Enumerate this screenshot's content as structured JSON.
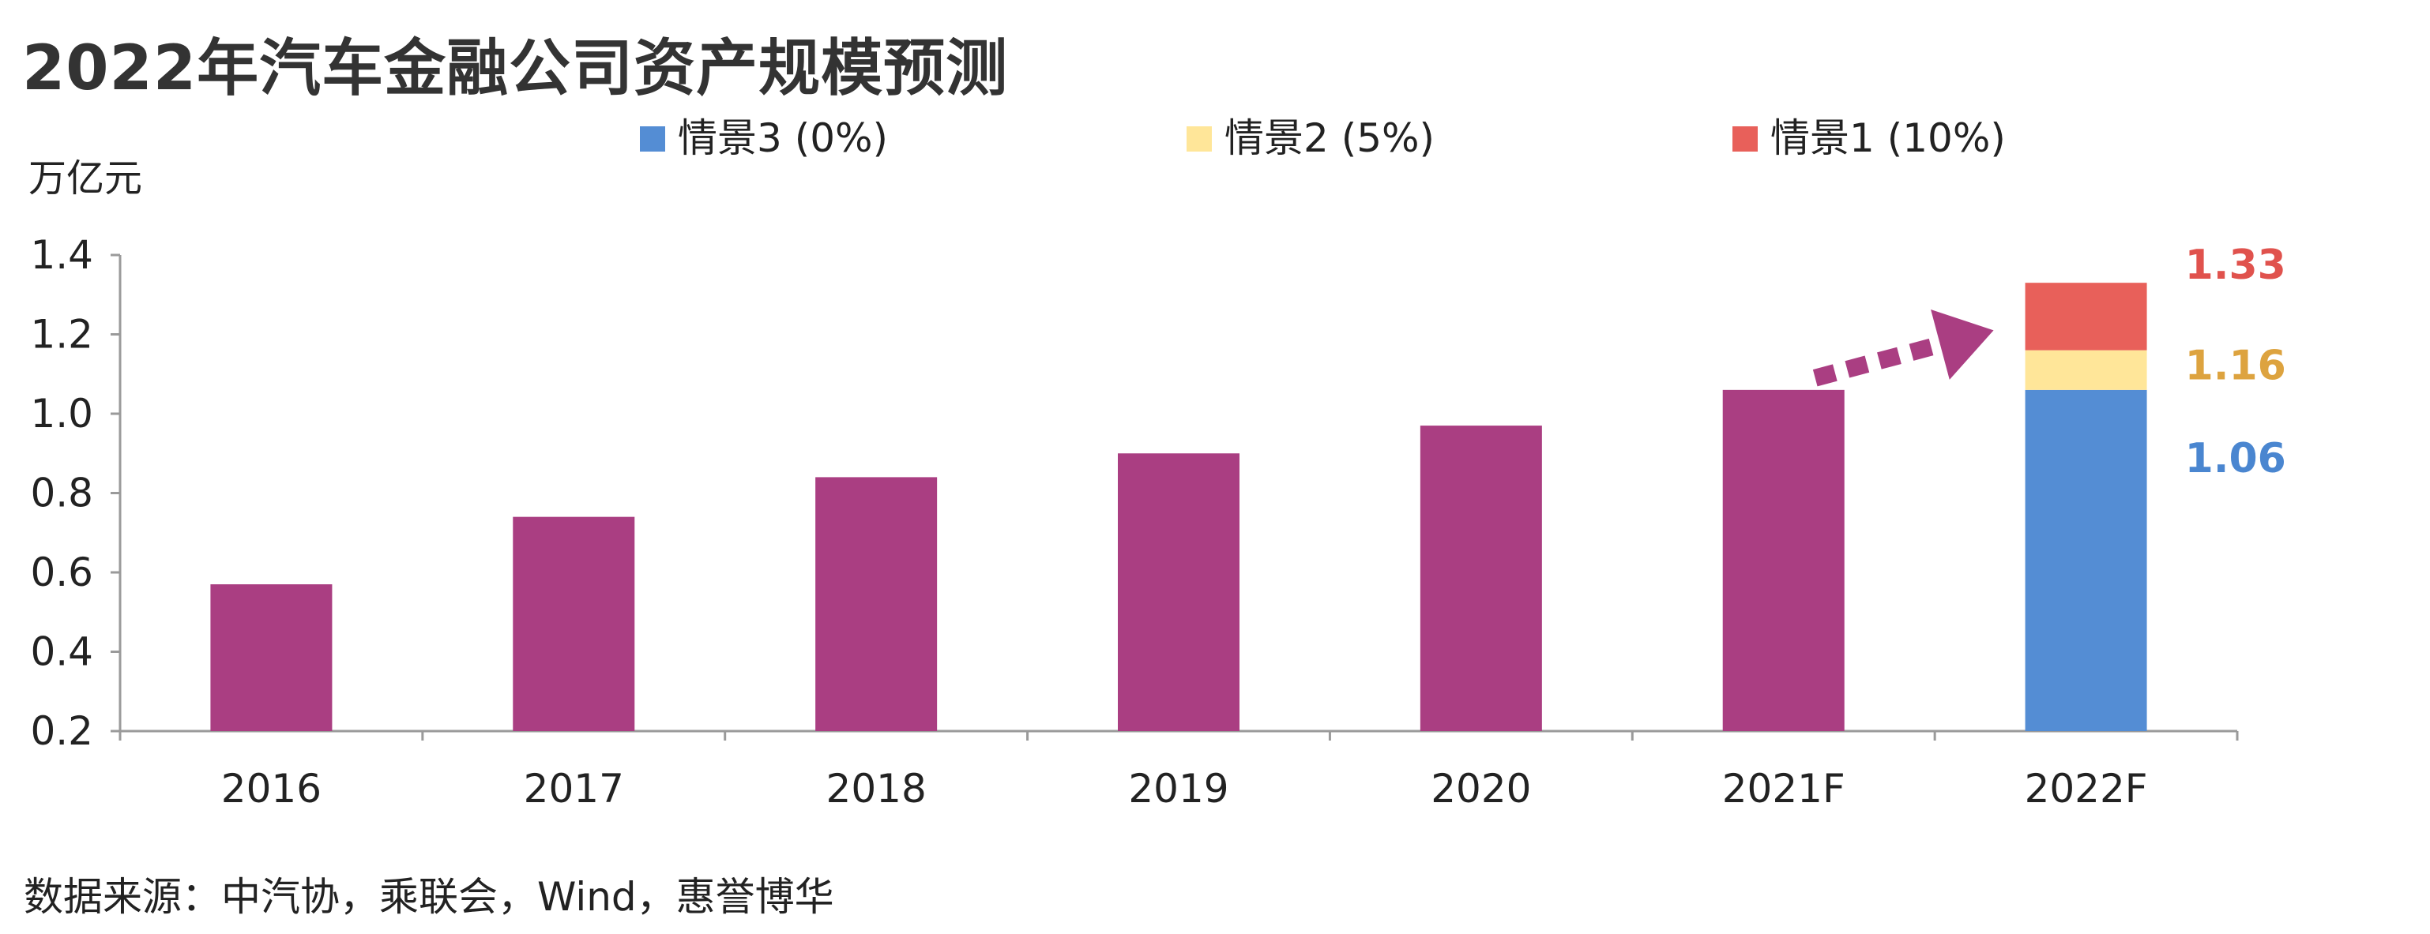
{
  "title": "2022年汽车金融公司资产规模预测",
  "unit_label": "万亿元",
  "source": "数据来源：中汽协，乘联会，Wind，惠誉博华",
  "colors": {
    "history": "#AA3E82",
    "scenario3": "#548DD4",
    "scenario2": "#FFE699",
    "scenario1": "#E8605A",
    "label_s3": "#4A86D0",
    "label_s2": "#DDA33F",
    "label_s1": "#E0524D",
    "axis": "#9a9a9a",
    "arrow": "#AA3E82"
  },
  "chart_data": {
    "type": "bar",
    "categories": [
      "2016",
      "2017",
      "2018",
      "2019",
      "2020",
      "2021F",
      "2022F"
    ],
    "ylim": [
      0.2,
      1.4
    ],
    "yticks": [
      "0.2",
      "0.4",
      "0.6",
      "0.8",
      "1.0",
      "1.2",
      "1.4"
    ],
    "grid": false,
    "history": {
      "categories": [
        "2016",
        "2017",
        "2018",
        "2019",
        "2020",
        "2021F"
      ],
      "values": [
        0.57,
        0.74,
        0.84,
        0.9,
        0.97,
        1.06
      ]
    },
    "scenarios": {
      "category": "2022F",
      "series": [
        {
          "name": "情景3 (0%)",
          "value": 1.06,
          "label": "1.06",
          "color_key": "scenario3",
          "label_color_key": "label_s3"
        },
        {
          "name": "情景2 (5%)",
          "value": 1.16,
          "label": "1.16",
          "color_key": "scenario2",
          "label_color_key": "label_s2"
        },
        {
          "name": "情景1 (10%)",
          "value": 1.33,
          "label": "1.33",
          "color_key": "scenario1",
          "label_color_key": "label_s1"
        }
      ]
    },
    "legend": {
      "placement": "top",
      "entries": [
        "情景3 (0%)",
        "情景2 (5%)",
        "情景1 (10%)"
      ]
    },
    "annotation": "dotted-arrow-from-2021F-to-2022F"
  }
}
